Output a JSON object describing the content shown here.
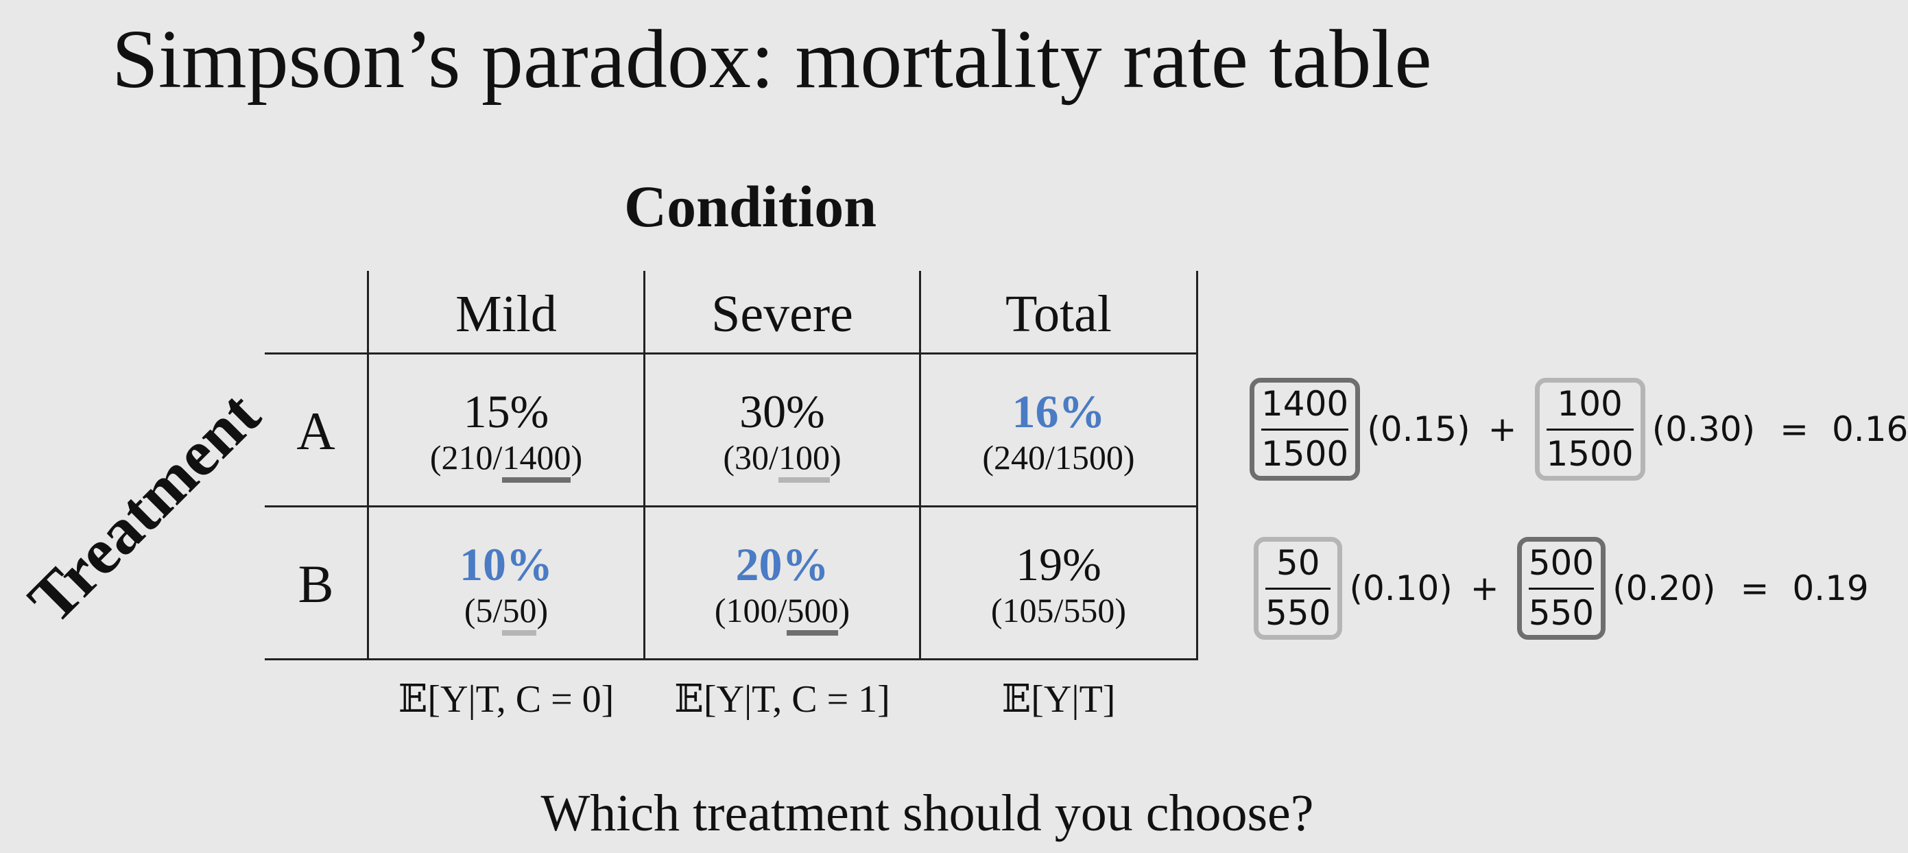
{
  "title": "Simpson’s paradox: mortality rate table",
  "condition_heading": "Condition",
  "treatment_label": "Treatment",
  "columns": [
    "Mild",
    "Severe",
    "Total"
  ],
  "rows": [
    {
      "label": "A",
      "cells": [
        {
          "pct": "15%",
          "frac_pre": "(210/",
          "frac_ul": "1400",
          "frac_post": ")"
        },
        {
          "pct": "30%",
          "frac_pre": "(30/",
          "frac_ul": "100",
          "frac_post": ")"
        },
        {
          "pct": "16%",
          "frac_pre": "(240/1500)",
          "frac_ul": "",
          "frac_post": ""
        }
      ]
    },
    {
      "label": "B",
      "cells": [
        {
          "pct": "10%",
          "frac_pre": "(5/",
          "frac_ul": "50",
          "frac_post": ")"
        },
        {
          "pct": "20%",
          "frac_pre": "(100/",
          "frac_ul": "500",
          "frac_post": ")"
        },
        {
          "pct": "19%",
          "frac_pre": "(105/550)",
          "frac_ul": "",
          "frac_post": ""
        }
      ]
    }
  ],
  "expectations": [
    "𝔼[Y|T, C = 0]",
    "𝔼[Y|T, C = 1]",
    "𝔼[Y|T]"
  ],
  "equations": [
    {
      "w1_num": "1400",
      "w1_den": "1500",
      "c1": "(0.15)",
      "plus": "+",
      "w2_num": "100",
      "w2_den": "1500",
      "c2": "(0.30)",
      "eq": "=",
      "result": "0.16"
    },
    {
      "w1_num": "50",
      "w1_den": "550",
      "c1": "(0.10)",
      "plus": "+",
      "w2_num": "500",
      "w2_den": "550",
      "c2": "(0.20)",
      "eq": "=",
      "result": "0.19"
    }
  ],
  "question": "Which treatment should you choose?",
  "colors": {
    "highlight": "#4a7bc4",
    "dark_box": "#6e6e6e",
    "light_box": "#b5b5b5",
    "background": "#e8e8e8"
  }
}
